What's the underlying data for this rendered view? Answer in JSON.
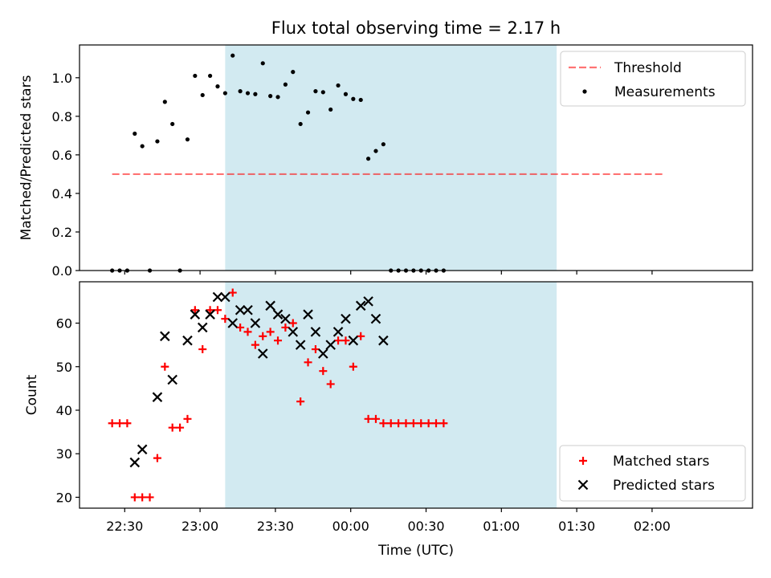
{
  "figure": {
    "title": "Flux total observing time = 2.17 h",
    "xlabel": "Time (UTC)"
  },
  "colors": {
    "highlight": "#add8e6",
    "threshold": "#ff0000",
    "measurement": "#000000",
    "matched": "#ff0000",
    "predicted": "#000000"
  },
  "chart_data": [
    {
      "type": "scatter",
      "ylabel": "Matched/Predicted stars",
      "ylim": [
        0,
        1.17
      ],
      "xlim": [
        "22:12",
        "02:40"
      ],
      "yticks": [
        "0.0",
        "0.2",
        "0.4",
        "0.6",
        "0.8",
        "1.0"
      ],
      "ytick_values": [
        0,
        0.2,
        0.4,
        0.6,
        0.8,
        1.0
      ],
      "grid": false,
      "legend": "top-right",
      "highlight_span": [
        "23:10",
        "01:22"
      ],
      "threshold": {
        "name": "Threshold",
        "value": 0.5,
        "x": [
          "22:25",
          "02:05"
        ]
      },
      "series": [
        {
          "name": "Measurements",
          "marker": "dot",
          "points": [
            [
              "22:25",
              0.0
            ],
            [
              "22:28",
              0.0
            ],
            [
              "22:31",
              0.0
            ],
            [
              "22:34",
              0.71
            ],
            [
              "22:37",
              0.645
            ],
            [
              "22:40",
              0.0
            ],
            [
              "22:43",
              0.67
            ],
            [
              "22:46",
              0.875
            ],
            [
              "22:49",
              0.76
            ],
            [
              "22:52",
              0.0
            ],
            [
              "22:55",
              0.68
            ],
            [
              "22:58",
              1.01
            ],
            [
              "23:01",
              0.91
            ],
            [
              "23:04",
              1.01
            ],
            [
              "23:07",
              0.955
            ],
            [
              "23:10",
              0.92
            ],
            [
              "23:13",
              1.115
            ],
            [
              "23:16",
              0.93
            ],
            [
              "23:19",
              0.92
            ],
            [
              "23:22",
              0.915
            ],
            [
              "23:25",
              1.075
            ],
            [
              "23:28",
              0.905
            ],
            [
              "23:31",
              0.9
            ],
            [
              "23:34",
              0.965
            ],
            [
              "23:37",
              1.03
            ],
            [
              "23:40",
              0.76
            ],
            [
              "23:43",
              0.82
            ],
            [
              "23:46",
              0.93
            ],
            [
              "23:49",
              0.925
            ],
            [
              "23:52",
              0.835
            ],
            [
              "23:55",
              0.96
            ],
            [
              "23:58",
              0.915
            ],
            [
              "00:01",
              0.89
            ],
            [
              "00:04",
              0.885
            ],
            [
              "00:07",
              0.58
            ],
            [
              "00:10",
              0.62
            ],
            [
              "00:13",
              0.655
            ],
            [
              "00:16",
              0.0
            ],
            [
              "00:19",
              0.0
            ],
            [
              "00:22",
              0.0
            ],
            [
              "00:25",
              0.0
            ],
            [
              "00:28",
              0.0
            ],
            [
              "00:31",
              0.0
            ],
            [
              "00:34",
              0.0
            ],
            [
              "00:37",
              0.0
            ]
          ]
        }
      ]
    },
    {
      "type": "scatter",
      "ylabel": "Count",
      "ylim": [
        17.5,
        69.5
      ],
      "xlim": [
        "22:12",
        "02:40"
      ],
      "yticks": [
        "20",
        "30",
        "40",
        "50",
        "60"
      ],
      "ytick_values": [
        20,
        30,
        40,
        50,
        60
      ],
      "xticks": [
        "22:30",
        "23:00",
        "23:30",
        "00:00",
        "00:30",
        "01:00",
        "01:30",
        "02:00"
      ],
      "grid": false,
      "legend": "bottom-right",
      "highlight_span": [
        "23:10",
        "01:22"
      ],
      "series": [
        {
          "name": "Matched stars",
          "marker": "plus",
          "points": [
            [
              "22:25",
              37
            ],
            [
              "22:28",
              37
            ],
            [
              "22:31",
              37
            ],
            [
              "22:34",
              20
            ],
            [
              "22:37",
              20
            ],
            [
              "22:40",
              20
            ],
            [
              "22:43",
              29
            ],
            [
              "22:46",
              50
            ],
            [
              "22:49",
              36
            ],
            [
              "22:52",
              36
            ],
            [
              "22:55",
              38
            ],
            [
              "22:58",
              63
            ],
            [
              "23:01",
              54
            ],
            [
              "23:04",
              63
            ],
            [
              "23:07",
              63
            ],
            [
              "23:10",
              61
            ],
            [
              "23:13",
              67
            ],
            [
              "23:16",
              59
            ],
            [
              "23:19",
              58
            ],
            [
              "23:22",
              55
            ],
            [
              "23:25",
              57
            ],
            [
              "23:28",
              58
            ],
            [
              "23:31",
              56
            ],
            [
              "23:34",
              59
            ],
            [
              "23:37",
              60
            ],
            [
              "23:40",
              42
            ],
            [
              "23:43",
              51
            ],
            [
              "23:46",
              54
            ],
            [
              "23:49",
              49
            ],
            [
              "23:52",
              46
            ],
            [
              "23:55",
              56
            ],
            [
              "23:58",
              56
            ],
            [
              "00:01",
              50
            ],
            [
              "00:04",
              57
            ],
            [
              "00:07",
              38
            ],
            [
              "00:10",
              38
            ],
            [
              "00:13",
              37
            ],
            [
              "00:16",
              37
            ],
            [
              "00:19",
              37
            ],
            [
              "00:22",
              37
            ],
            [
              "00:25",
              37
            ],
            [
              "00:28",
              37
            ],
            [
              "00:31",
              37
            ],
            [
              "00:34",
              37
            ],
            [
              "00:37",
              37
            ]
          ]
        },
        {
          "name": "Predicted stars",
          "marker": "x",
          "points": [
            [
              "22:34",
              28
            ],
            [
              "22:37",
              31
            ],
            [
              "22:43",
              43
            ],
            [
              "22:46",
              57
            ],
            [
              "22:49",
              47
            ],
            [
              "22:55",
              56
            ],
            [
              "22:58",
              62
            ],
            [
              "23:01",
              59
            ],
            [
              "23:04",
              62
            ],
            [
              "23:07",
              66
            ],
            [
              "23:10",
              66
            ],
            [
              "23:13",
              60
            ],
            [
              "23:16",
              63
            ],
            [
              "23:19",
              63
            ],
            [
              "23:22",
              60
            ],
            [
              "23:25",
              53
            ],
            [
              "23:28",
              64
            ],
            [
              "23:31",
              62
            ],
            [
              "23:34",
              61
            ],
            [
              "23:37",
              58
            ],
            [
              "23:40",
              55
            ],
            [
              "23:43",
              62
            ],
            [
              "23:46",
              58
            ],
            [
              "23:49",
              53
            ],
            [
              "23:52",
              55
            ],
            [
              "23:55",
              58
            ],
            [
              "23:58",
              61
            ],
            [
              "00:01",
              56
            ],
            [
              "00:04",
              64
            ],
            [
              "00:07",
              65
            ],
            [
              "00:10",
              61
            ],
            [
              "00:13",
              56
            ]
          ]
        }
      ]
    }
  ]
}
